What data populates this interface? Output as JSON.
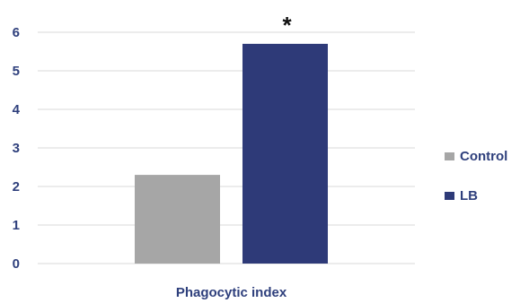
{
  "chart_data": {
    "type": "bar",
    "title": "",
    "xlabel": "",
    "ylabel": "",
    "categories": [
      "Phagocytic index"
    ],
    "series": [
      {
        "name": "Control",
        "values": [
          2.3
        ],
        "color": "#a6a6a6"
      },
      {
        "name": "LB",
        "values": [
          5.7
        ],
        "color": "#2e3a78"
      }
    ],
    "ylim": [
      0,
      6
    ],
    "yticks": [
      "0",
      "1",
      "2",
      "3",
      "4",
      "5",
      "6"
    ],
    "grid": true,
    "legend_position": "right",
    "annotations": [
      {
        "text": "*",
        "series": "LB",
        "category": "Phagocytic index"
      }
    ]
  }
}
